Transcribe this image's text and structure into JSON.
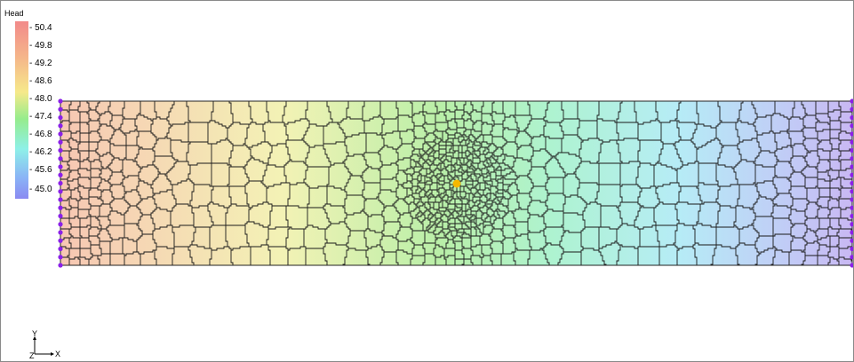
{
  "legend": {
    "title": "Head",
    "ticks": [
      "50.4",
      "49.8",
      "49.2",
      "48.6",
      "48.0",
      "47.4",
      "46.8",
      "46.2",
      "45.6",
      "45.0"
    ]
  },
  "axes": {
    "y_label": "Y",
    "x_label": "X",
    "z_label": "Z"
  },
  "colors": {
    "left_boundary_nodes": "#8b20e8",
    "well_marker": "#f5b800",
    "mesh_edges": "#1a1a1a"
  }
}
